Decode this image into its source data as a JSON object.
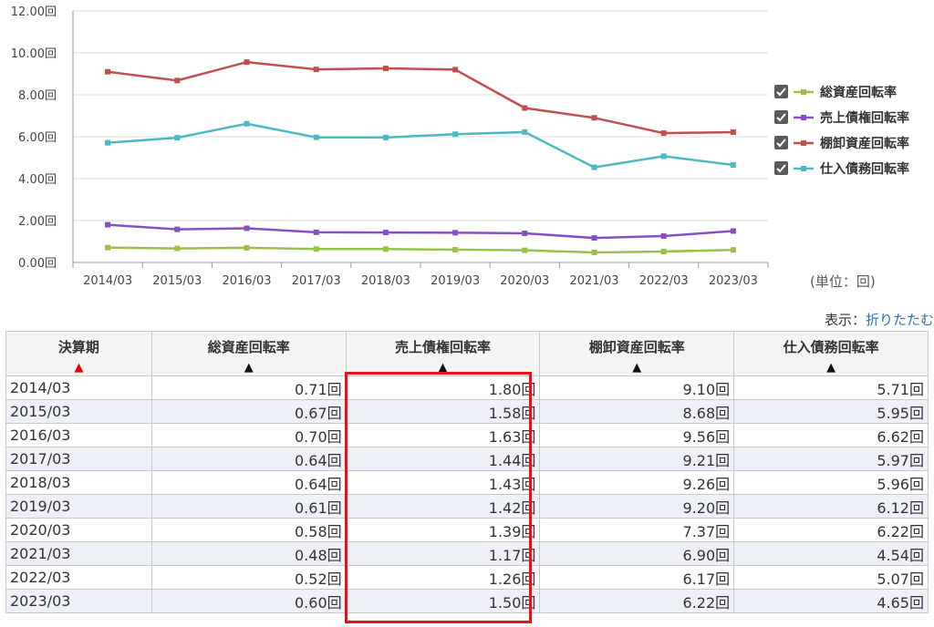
{
  "chart_data": {
    "type": "line",
    "categories": [
      "2014/03",
      "2015/03",
      "2016/03",
      "2017/03",
      "2018/03",
      "2019/03",
      "2020/03",
      "2021/03",
      "2022/03",
      "2023/03"
    ],
    "ylim": [
      0,
      12
    ],
    "yticks": [
      "0.00回",
      "2.00回",
      "4.00回",
      "6.00回",
      "8.00回",
      "10.00回",
      "12.00回"
    ],
    "grid": true,
    "legend_position": "right",
    "series": [
      {
        "name": "総資産回転率",
        "color": "#9bc04a",
        "values": [
          0.71,
          0.67,
          0.7,
          0.64,
          0.64,
          0.61,
          0.58,
          0.48,
          0.52,
          0.6
        ]
      },
      {
        "name": "売上債権回転率",
        "color": "#8650c2",
        "values": [
          1.8,
          1.58,
          1.63,
          1.44,
          1.43,
          1.42,
          1.39,
          1.17,
          1.26,
          1.5
        ]
      },
      {
        "name": "棚卸資産回転率",
        "color": "#c0504d",
        "values": [
          9.1,
          8.68,
          9.56,
          9.21,
          9.26,
          9.2,
          7.37,
          6.9,
          6.17,
          6.22
        ]
      },
      {
        "name": "仕入債務回転率",
        "color": "#4bb9c4",
        "values": [
          5.71,
          5.95,
          6.62,
          5.97,
          5.96,
          6.12,
          6.22,
          4.54,
          5.07,
          4.65
        ]
      }
    ]
  },
  "unit_note": "(単位：回)",
  "display_label": "表示：",
  "display_link": "折りたたむ",
  "table": {
    "headers": [
      "決算期",
      "総資産回転率",
      "売上債権回転率",
      "棚卸資産回転率",
      "仕入債務回転率"
    ],
    "sort_arrow": "▲",
    "rows": [
      [
        "2014/03",
        "0.71回",
        "1.80回",
        "9.10回",
        "5.71回"
      ],
      [
        "2015/03",
        "0.67回",
        "1.58回",
        "8.68回",
        "5.95回"
      ],
      [
        "2016/03",
        "0.70回",
        "1.63回",
        "9.56回",
        "6.62回"
      ],
      [
        "2017/03",
        "0.64回",
        "1.44回",
        "9.21回",
        "5.97回"
      ],
      [
        "2018/03",
        "0.64回",
        "1.43回",
        "9.26回",
        "5.96回"
      ],
      [
        "2019/03",
        "0.61回",
        "1.42回",
        "9.20回",
        "6.12回"
      ],
      [
        "2020/03",
        "0.58回",
        "1.39回",
        "7.37回",
        "6.22回"
      ],
      [
        "2021/03",
        "0.48回",
        "1.17回",
        "6.90回",
        "4.54回"
      ],
      [
        "2022/03",
        "0.52回",
        "1.26回",
        "6.17回",
        "5.07回"
      ],
      [
        "2023/03",
        "0.60回",
        "1.50回",
        "6.22回",
        "4.65回"
      ]
    ]
  }
}
